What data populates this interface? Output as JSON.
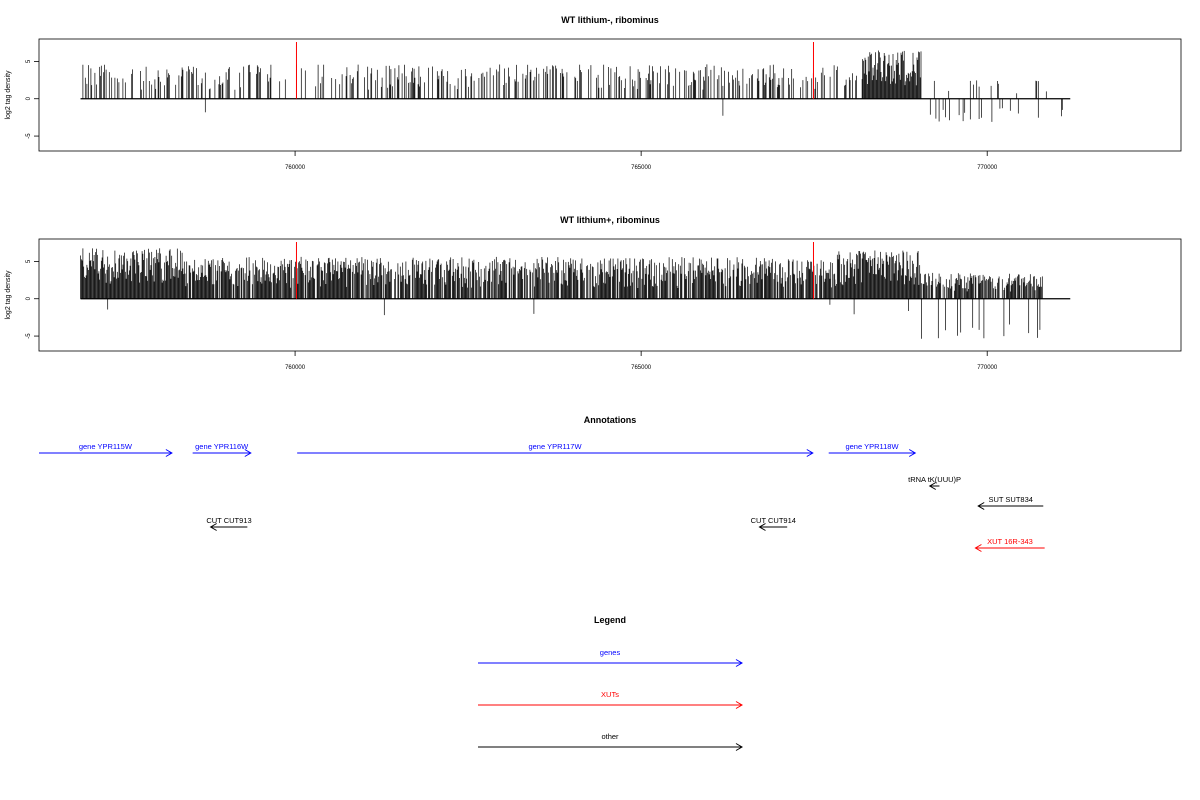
{
  "colors": {
    "gene": "#0000ff",
    "xut": "#ff0000",
    "other": "#000000",
    "marker": "#ff0000",
    "signal": "#000000"
  },
  "chart_data": [
    {
      "type": "bar",
      "title": "WT lithium-, ribominus",
      "ylabel": "log2 tag density",
      "xlim": [
        756300,
        772800
      ],
      "ylim": [
        -7,
        8
      ],
      "xticks": [
        760000,
        765000,
        770000
      ],
      "yticks": [
        -5,
        0,
        5
      ],
      "markers_x": [
        760020,
        767490
      ],
      "regions": [
        {
          "from": 756900,
          "to": 768200,
          "density": 0.35,
          "pos_max": 4.6,
          "neg_prob": 0.01,
          "neg_max": 2.4
        },
        {
          "from": 768200,
          "to": 769050,
          "density": 1.0,
          "pos_max": 6.5,
          "neg_prob": 0.02,
          "neg_max": 1.8
        },
        {
          "from": 769050,
          "to": 771200,
          "density": 0.06,
          "pos_max": 2.5,
          "neg_prob": 0.4,
          "neg_max": 3.2
        }
      ]
    },
    {
      "type": "bar",
      "title": "WT lithium+, ribominus",
      "ylabel": "log2 tag density",
      "xlim": [
        756300,
        772800
      ],
      "ylim": [
        -7,
        8
      ],
      "xticks": [
        760000,
        765000,
        770000
      ],
      "yticks": [
        -5,
        0,
        5
      ],
      "markers_x": [
        760020,
        767490
      ],
      "regions": [
        {
          "from": 756900,
          "to": 758400,
          "density": 1.0,
          "pos_max": 6.8,
          "neg_prob": 0.01,
          "neg_max": 2.0
        },
        {
          "from": 758400,
          "to": 767800,
          "density": 0.85,
          "pos_max": 5.6,
          "neg_prob": 0.03,
          "neg_max": 2.5
        },
        {
          "from": 767800,
          "to": 769050,
          "density": 1.0,
          "pos_max": 6.5,
          "neg_prob": 0.08,
          "neg_max": 3.0
        },
        {
          "from": 769050,
          "to": 770800,
          "density": 0.8,
          "pos_max": 3.5,
          "neg_prob": 0.55,
          "neg_max": 5.5
        },
        {
          "from": 770800,
          "to": 771200,
          "density": 0.05,
          "pos_max": 1.0,
          "neg_prob": 0.0,
          "neg_max": 0.0
        }
      ]
    }
  ],
  "annotations": {
    "title": "Annotations",
    "features": [
      {
        "label": "gene YPR115W",
        "from": 755700,
        "to": 758220,
        "strand": "+",
        "kind": "gene",
        "row": 0
      },
      {
        "label": "gene YPR116W",
        "from": 758520,
        "to": 759360,
        "strand": "+",
        "kind": "gene",
        "row": 0
      },
      {
        "label": "gene YPR117W",
        "from": 760030,
        "to": 767480,
        "strand": "+",
        "kind": "gene",
        "row": 0
      },
      {
        "label": "gene YPR118W",
        "from": 767710,
        "to": 768960,
        "strand": "+",
        "kind": "gene",
        "row": 0
      },
      {
        "label": "tRNA tK(UUU)P",
        "from": 769170,
        "to": 769310,
        "strand": "-",
        "kind": "other",
        "row": 1
      },
      {
        "label": "SUT SUT834",
        "from": 769870,
        "to": 770810,
        "strand": "-",
        "kind": "other",
        "row": 2
      },
      {
        "label": "CUT CUT913",
        "from": 758780,
        "to": 759310,
        "strand": "-",
        "kind": "other",
        "row": 3
      },
      {
        "label": "CUT CUT914",
        "from": 766710,
        "to": 767110,
        "strand": "-",
        "kind": "other",
        "row": 3
      },
      {
        "label": "XUT 16R-343",
        "from": 769830,
        "to": 770830,
        "strand": "-",
        "kind": "xut",
        "row": 4
      }
    ]
  },
  "legend": {
    "title": "Legend",
    "items": [
      {
        "label": "genes",
        "kind": "gene"
      },
      {
        "label": "XUTs",
        "kind": "xut"
      },
      {
        "label": "other",
        "kind": "other"
      }
    ]
  }
}
